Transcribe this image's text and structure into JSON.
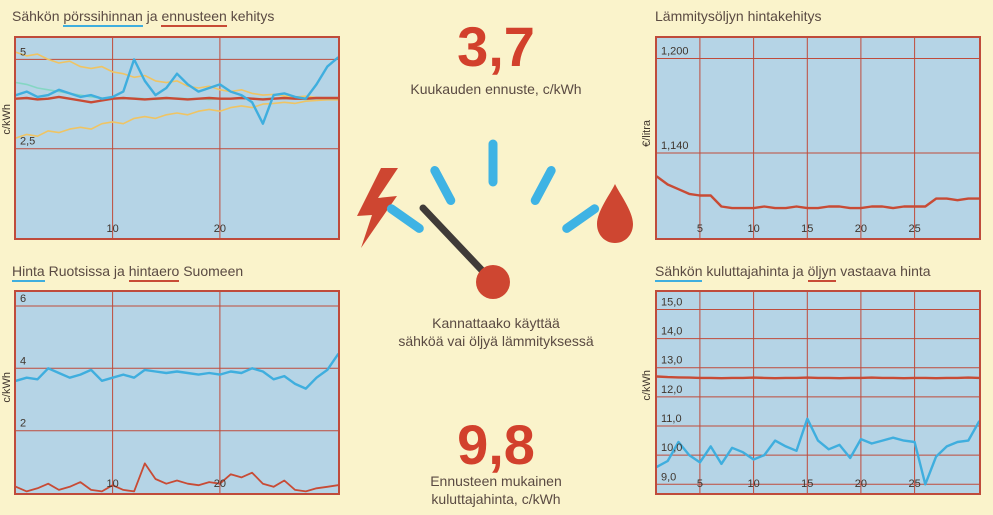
{
  "theme": {
    "background": "#FAF3CB",
    "plot_background": "#B5D4E6",
    "grid_color": "#BF4B3B",
    "tick_text_color": "#3F352D",
    "accent_blue": "#3FAEDE",
    "accent_red": "#C84B35",
    "accent_yellow": "#EFC464",
    "accent_teal": "#85D6C3",
    "big_number_color": "#D2402C"
  },
  "center": {
    "forecast_value": "3,7",
    "forecast_caption": "Kuukauden ennuste, c/kWh",
    "gauge_question_line1": "Kannattaako käyttää",
    "gauge_question_line2": "sähköä vai öljyä lämmityksessä",
    "consumer_value": "9,8",
    "consumer_caption_line1": "Ennusteen mukainen",
    "consumer_caption_line2": "kuluttajahinta, c/kWh",
    "gauge_left_icon": "lightning-bolt",
    "gauge_right_icon": "oil-drop"
  },
  "chart_data": [
    {
      "type": "line",
      "title_parts": [
        {
          "text": "Sähkön ",
          "style": "plain"
        },
        {
          "text": "pörssihinnan",
          "style": "blue-underline"
        },
        {
          "text": " ja ",
          "style": "plain"
        },
        {
          "text": "ennusteen",
          "style": "red-underline"
        },
        {
          "text": " kehitys",
          "style": "plain"
        }
      ],
      "ylabel": "c/kWh",
      "xlim": [
        1,
        31
      ],
      "ylim": [
        0,
        5.6
      ],
      "x_ticks": [
        {
          "v": 10,
          "label": "10"
        },
        {
          "v": 20,
          "label": "20"
        }
      ],
      "y_ticks": [
        {
          "v": 5,
          "label": "5"
        },
        {
          "v": 2.5,
          "label": "2,5"
        }
      ],
      "series": [
        {
          "name": "upper-bound",
          "color": "#EFC464",
          "width": 1.6,
          "values": [
            5.2,
            5.1,
            5.15,
            5.0,
            4.9,
            4.95,
            4.8,
            4.75,
            4.8,
            4.65,
            4.6,
            4.5,
            4.55,
            4.4,
            4.35,
            4.4,
            4.25,
            4.2,
            4.25,
            4.15,
            4.1,
            4.15,
            4.05,
            4.0,
            4.02,
            3.98,
            3.95,
            3.97,
            3.93,
            3.92,
            3.92
          ]
        },
        {
          "name": "lower-bound",
          "color": "#EFC464",
          "width": 1.6,
          "values": [
            2.8,
            2.9,
            2.85,
            3.0,
            2.95,
            3.05,
            3.1,
            3.05,
            3.2,
            3.25,
            3.2,
            3.35,
            3.4,
            3.35,
            3.45,
            3.5,
            3.45,
            3.55,
            3.6,
            3.55,
            3.65,
            3.7,
            3.65,
            3.75,
            3.77,
            3.8,
            3.77,
            3.83,
            3.85,
            3.87,
            3.87
          ]
        },
        {
          "name": "model-estimate",
          "color": "#85D6C3",
          "width": 1.6,
          "values": [
            4.35,
            4.3,
            4.2,
            4.15,
            4.1,
            4.05,
            4.0,
            3.95,
            3.92,
            3.9,
            3.9,
            3.92,
            3.9,
            3.88,
            3.9,
            3.92,
            3.9,
            3.9,
            3.88,
            3.9,
            3.9,
            3.92,
            3.9,
            3.9,
            3.92,
            3.9,
            3.9,
            3.88,
            3.9,
            3.9,
            3.9
          ]
        },
        {
          "name": "forecast",
          "color": "#C84B35",
          "width": 2.4,
          "values": [
            3.9,
            3.92,
            3.88,
            3.9,
            3.95,
            3.9,
            3.85,
            3.8,
            3.85,
            3.9,
            3.92,
            3.9,
            3.88,
            3.9,
            3.92,
            3.9,
            3.88,
            3.9,
            3.92,
            3.9,
            3.9,
            3.92,
            3.9,
            3.88,
            3.9,
            3.92,
            3.9,
            3.9,
            3.92,
            3.92,
            3.92
          ]
        },
        {
          "name": "spot-price",
          "color": "#3FAEDE",
          "width": 2.4,
          "values": [
            4.0,
            4.1,
            3.95,
            4.0,
            4.15,
            4.05,
            3.95,
            4.0,
            3.9,
            3.95,
            4.1,
            5.0,
            4.4,
            4.0,
            4.2,
            4.6,
            4.3,
            4.1,
            4.2,
            4.3,
            4.1,
            4.0,
            3.8,
            3.2,
            4.0,
            4.05,
            3.95,
            3.9,
            4.3,
            4.8,
            5.05
          ]
        }
      ]
    },
    {
      "type": "line",
      "title_parts": [
        {
          "text": "Lämmitysöljyn hintakehitys",
          "style": "plain"
        }
      ],
      "ylabel": "€/litra",
      "xlim": [
        1,
        31
      ],
      "ylim": [
        1086,
        1213
      ],
      "x_ticks": [
        {
          "v": 5,
          "label": "5"
        },
        {
          "v": 10,
          "label": "10"
        },
        {
          "v": 15,
          "label": "15"
        },
        {
          "v": 20,
          "label": "20"
        },
        {
          "v": 25,
          "label": "25"
        }
      ],
      "y_ticks": [
        {
          "v": 1200,
          "label": "1,200"
        },
        {
          "v": 1140,
          "label": "1,140"
        }
      ],
      "series": [
        {
          "name": "heating-oil-price",
          "color": "#C84B35",
          "width": 2.4,
          "values": [
            1125,
            1120,
            1117,
            1114,
            1113,
            1113,
            1106,
            1105,
            1105,
            1105,
            1106,
            1105,
            1105,
            1106,
            1105,
            1105,
            1106,
            1106,
            1105,
            1105,
            1106,
            1106,
            1105,
            1106,
            1106,
            1106,
            1111,
            1111,
            1110,
            1111,
            1111
          ]
        }
      ]
    },
    {
      "type": "line",
      "title_parts": [
        {
          "text": "Hinta",
          "style": "blue-underline"
        },
        {
          "text": " Ruotsissa ja ",
          "style": "plain"
        },
        {
          "text": "hintaero",
          "style": "red-underline"
        },
        {
          "text": " Suomeen",
          "style": "plain"
        }
      ],
      "ylabel": "c/kWh",
      "xlim": [
        1,
        31
      ],
      "ylim": [
        0,
        6.45
      ],
      "x_ticks": [
        {
          "v": 10,
          "label": "10"
        },
        {
          "v": 20,
          "label": "20"
        }
      ],
      "y_ticks": [
        {
          "v": 6,
          "label": "6"
        },
        {
          "v": 4,
          "label": "4"
        },
        {
          "v": 2,
          "label": "2"
        }
      ],
      "series": [
        {
          "name": "sweden-price",
          "color": "#3FAEDE",
          "width": 2.4,
          "values": [
            3.6,
            3.7,
            3.65,
            4.0,
            3.85,
            3.7,
            3.8,
            3.95,
            3.6,
            3.7,
            3.8,
            3.7,
            3.95,
            3.9,
            3.85,
            3.9,
            3.85,
            3.8,
            3.85,
            3.8,
            3.9,
            3.85,
            4.0,
            3.9,
            3.65,
            3.75,
            3.5,
            3.35,
            3.7,
            3.95,
            4.45
          ]
        },
        {
          "name": "price-difference-to-finland",
          "color": "#C84B35",
          "width": 1.8,
          "values": [
            0.2,
            0.05,
            0.15,
            0.3,
            0.1,
            0.2,
            0.35,
            0.1,
            0.05,
            0.25,
            0.1,
            0.05,
            0.95,
            0.45,
            0.3,
            0.4,
            0.3,
            0.25,
            0.35,
            0.3,
            0.6,
            0.5,
            0.65,
            0.3,
            0.2,
            0.4,
            0.1,
            0.05,
            0.15,
            0.2,
            0.25
          ]
        }
      ]
    },
    {
      "type": "line",
      "title_parts": [
        {
          "text": "Sähkön",
          "style": "blue-underline"
        },
        {
          "text": " kuluttajahinta ja ",
          "style": "plain"
        },
        {
          "text": "öljyn",
          "style": "red-underline"
        },
        {
          "text": " vastaava hinta",
          "style": "plain"
        }
      ],
      "ylabel": "c/kWh",
      "xlim": [
        1,
        31
      ],
      "ylim": [
        8.7,
        15.6
      ],
      "x_ticks": [
        {
          "v": 5,
          "label": "5"
        },
        {
          "v": 10,
          "label": "10"
        },
        {
          "v": 15,
          "label": "15"
        },
        {
          "v": 20,
          "label": "20"
        },
        {
          "v": 25,
          "label": "25"
        }
      ],
      "y_ticks": [
        {
          "v": 15,
          "label": "15,0"
        },
        {
          "v": 14,
          "label": "14,0"
        },
        {
          "v": 13,
          "label": "13,0"
        },
        {
          "v": 12,
          "label": "12,0"
        },
        {
          "v": 11,
          "label": "11,0"
        },
        {
          "v": 10,
          "label": "10,0"
        },
        {
          "v": 9,
          "label": "9,0"
        }
      ],
      "series": [
        {
          "name": "oil-equivalent-price",
          "color": "#C84B35",
          "width": 2.4,
          "values": [
            12.7,
            12.68,
            12.67,
            12.66,
            12.65,
            12.65,
            12.64,
            12.65,
            12.65,
            12.66,
            12.65,
            12.64,
            12.65,
            12.65,
            12.66,
            12.65,
            12.65,
            12.64,
            12.65,
            12.65,
            12.66,
            12.65,
            12.65,
            12.64,
            12.65,
            12.65,
            12.64,
            12.65,
            12.65,
            12.66,
            12.65
          ]
        },
        {
          "name": "electricity-consumer-price",
          "color": "#3FAEDE",
          "width": 2.4,
          "values": [
            9.6,
            9.8,
            10.45,
            10.0,
            9.75,
            10.3,
            9.7,
            10.25,
            10.1,
            9.85,
            10.0,
            10.5,
            10.3,
            10.15,
            11.25,
            10.5,
            10.2,
            10.35,
            9.9,
            10.55,
            10.4,
            10.5,
            10.6,
            10.5,
            10.45,
            9.0,
            9.95,
            10.3,
            10.45,
            10.5,
            11.15
          ]
        }
      ]
    }
  ]
}
